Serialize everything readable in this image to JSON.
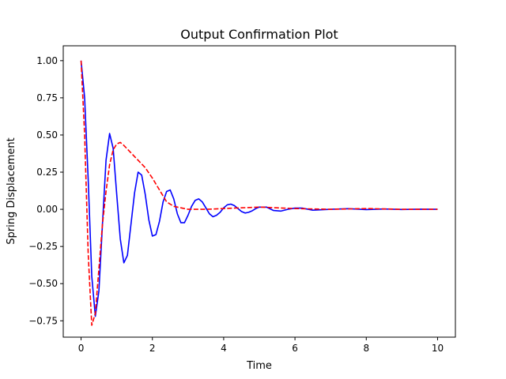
{
  "chart_data": {
    "type": "line",
    "title": "Output Confirmation Plot",
    "xlabel": "Time",
    "ylabel": "Spring Displacement",
    "xlim": [
      -0.5,
      10.5
    ],
    "ylim": [
      -0.86,
      1.1
    ],
    "grid": false,
    "x_ticks": [
      0,
      2,
      4,
      6,
      8,
      10
    ],
    "x_tick_labels": [
      "0",
      "2",
      "4",
      "6",
      "8",
      "10"
    ],
    "y_ticks": [
      -0.75,
      -0.5,
      -0.25,
      0.0,
      0.25,
      0.5,
      0.75,
      1.0
    ],
    "y_tick_labels": [
      "−0.75",
      "−0.50",
      "−0.25",
      "0.00",
      "0.25",
      "0.50",
      "0.75",
      "1.00"
    ],
    "series": [
      {
        "color": "#0000ff",
        "style": "solid",
        "x": [
          0,
          0.1,
          0.2,
          0.3,
          0.4,
          0.5,
          0.6,
          0.7,
          0.8,
          0.9,
          1.0,
          1.1,
          1.2,
          1.3,
          1.4,
          1.5,
          1.6,
          1.7,
          1.8,
          1.9,
          2.0,
          2.1,
          2.2,
          2.3,
          2.4,
          2.5,
          2.6,
          2.7,
          2.8,
          2.9,
          3.0,
          3.1,
          3.2,
          3.3,
          3.4,
          3.5,
          3.6,
          3.7,
          3.8,
          3.9,
          4.0,
          4.1,
          4.2,
          4.3,
          4.4,
          4.5,
          4.6,
          4.7,
          4.8,
          4.9,
          5.0,
          5.2,
          5.4,
          5.6,
          5.8,
          6.0,
          6.2,
          6.5,
          7.0,
          7.5,
          8.0,
          8.5,
          9.0,
          9.5,
          10.0
        ],
        "y": [
          1.0,
          0.75,
          0.2,
          -0.45,
          -0.72,
          -0.55,
          -0.1,
          0.33,
          0.51,
          0.41,
          0.1,
          -0.2,
          -0.36,
          -0.31,
          -0.1,
          0.11,
          0.25,
          0.23,
          0.1,
          -0.07,
          -0.18,
          -0.17,
          -0.08,
          0.05,
          0.12,
          0.13,
          0.07,
          -0.03,
          -0.09,
          -0.09,
          -0.04,
          0.02,
          0.06,
          0.07,
          0.05,
          0.01,
          -0.03,
          -0.05,
          -0.04,
          -0.02,
          0.01,
          0.03,
          0.035,
          0.025,
          0.005,
          -0.015,
          -0.025,
          -0.02,
          -0.01,
          0.005,
          0.015,
          0.015,
          -0.008,
          -0.012,
          0.0,
          0.008,
          0.008,
          -0.006,
          0.0,
          0.004,
          -0.002,
          0.002,
          -0.001,
          0.001,
          0.0
        ]
      },
      {
        "color": "#ff0000",
        "style": "dashed",
        "x": [
          0,
          0.1,
          0.2,
          0.3,
          0.4,
          0.5,
          0.6,
          0.7,
          0.8,
          0.9,
          1.0,
          1.1,
          1.2,
          1.4,
          1.6,
          1.8,
          2.0,
          2.2,
          2.4,
          2.6,
          2.8,
          3.0,
          3.5,
          4.0,
          4.5,
          5.0,
          6.0,
          7.0,
          8.0,
          9.0,
          10.0
        ],
        "y": [
          1.0,
          0.5,
          -0.3,
          -0.78,
          -0.7,
          -0.4,
          -0.1,
          0.12,
          0.3,
          0.4,
          0.44,
          0.45,
          0.43,
          0.38,
          0.33,
          0.28,
          0.21,
          0.13,
          0.05,
          0.02,
          0.01,
          0.0,
          0.0,
          0.005,
          0.01,
          0.015,
          0.005,
          0.0,
          0.005,
          0.0,
          0.0
        ]
      }
    ]
  }
}
